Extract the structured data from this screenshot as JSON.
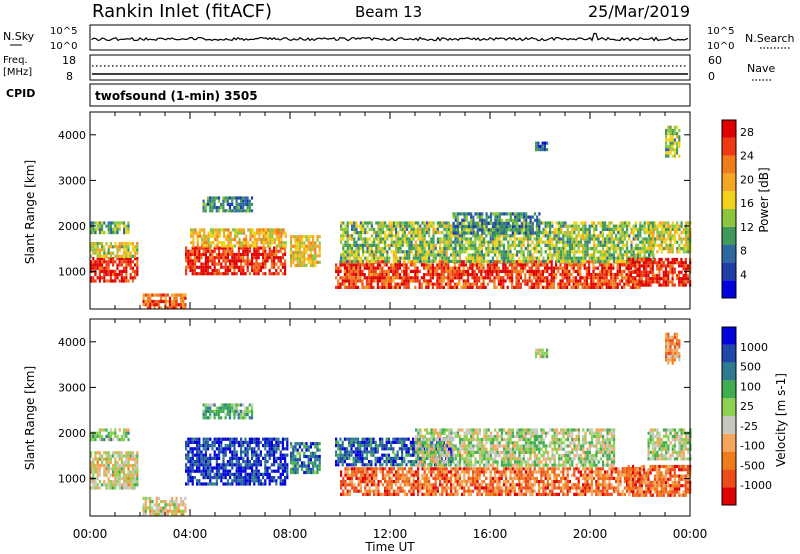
{
  "header": {
    "station": "Rankin Inlet (fitACF)",
    "beam": "Beam 13",
    "date": "25/Mar/2019"
  },
  "noise_panel": {
    "left_label": "N.Sky",
    "right_label": "N.Search",
    "top_tick": "10^5",
    "bottom_tick": "10^0",
    "right_top_tick": "10^5",
    "right_bottom_tick": "10^0"
  },
  "freq_panel": {
    "left_label_1": "Freq.",
    "left_label_2": "[MHz]",
    "left_top_tick": "18",
    "left_bottom_tick": "8",
    "right_label": "Nave",
    "right_top_tick": "60",
    "right_bottom_tick": "0"
  },
  "cpid": {
    "label": "CPID",
    "value": "twofsound (1-min) 3505"
  },
  "axes": {
    "xlabel": "Time UT",
    "xticks": [
      "00:00",
      "04:00",
      "08:00",
      "12:00",
      "16:00",
      "20:00",
      "00:00"
    ],
    "ylabel": "Slant Range [km]",
    "yticks": [
      "1000",
      "2000",
      "3000",
      "4000"
    ]
  },
  "colors": {
    "power": [
      "#0000dd",
      "#1f3fa8",
      "#2e6a9f",
      "#3f9a5a",
      "#8cc63f",
      "#f2d21b",
      "#f5a623",
      "#f07b1b",
      "#ee3a14",
      "#e00000"
    ],
    "velocity": [
      "#e00000",
      "#ee4a1a",
      "#f07b1b",
      "#f5a65a",
      "#c8c8c0",
      "#8ed04f",
      "#3fae4e",
      "#2e7a8f",
      "#1f49a8",
      "#0000dd"
    ]
  },
  "chart_data": [
    {
      "type": "heatmap",
      "name": "power",
      "xlabel": "Time UT",
      "ylabel": "Slant Range [km]",
      "xlim": [
        0,
        24
      ],
      "ylim": [
        180,
        4500
      ],
      "colorbar": {
        "label": "Power [dB]",
        "ticks": [
          "4",
          "8",
          "12",
          "16",
          "20",
          "24",
          "28"
        ],
        "range": [
          0,
          30
        ]
      },
      "regions": [
        {
          "t": [
            0.0,
            1.9
          ],
          "r": [
            780,
            1320
          ],
          "level": 0.92
        },
        {
          "t": [
            0.0,
            1.9
          ],
          "r": [
            1320,
            1650
          ],
          "level": 0.55
        },
        {
          "t": [
            0.0,
            1.5
          ],
          "r": [
            1850,
            2100
          ],
          "level": 0.4
        },
        {
          "t": [
            2.1,
            3.8
          ],
          "r": [
            200,
            520
          ],
          "level": 0.8
        },
        {
          "t": [
            3.8,
            7.8
          ],
          "r": [
            920,
            1550
          ],
          "level": 0.88
        },
        {
          "t": [
            4.0,
            7.8
          ],
          "r": [
            1550,
            1950
          ],
          "level": 0.6
        },
        {
          "t": [
            4.5,
            6.5
          ],
          "r": [
            2350,
            2650
          ],
          "level": 0.3
        },
        {
          "t": [
            8.0,
            9.2
          ],
          "r": [
            1100,
            1800
          ],
          "level": 0.6
        },
        {
          "t": [
            9.8,
            22.0
          ],
          "r": [
            650,
            1250
          ],
          "level": 0.85
        },
        {
          "t": [
            10.0,
            22.5
          ],
          "r": [
            1250,
            2100
          ],
          "level": 0.45
        },
        {
          "t": [
            14.5,
            18.0
          ],
          "r": [
            1850,
            2300
          ],
          "level": 0.3
        },
        {
          "t": [
            17.8,
            18.3
          ],
          "r": [
            3650,
            3850
          ],
          "level": 0.25
        },
        {
          "t": [
            21.5,
            24.0
          ],
          "r": [
            700,
            1300
          ],
          "level": 0.9
        },
        {
          "t": [
            22.3,
            24.0
          ],
          "r": [
            1400,
            2100
          ],
          "level": 0.5
        },
        {
          "t": [
            23.0,
            23.6
          ],
          "r": [
            3500,
            4200
          ],
          "level": 0.45
        }
      ]
    },
    {
      "type": "heatmap",
      "name": "velocity",
      "xlabel": "Time UT",
      "ylabel": "Slant Range [km]",
      "xlim": [
        0,
        24
      ],
      "ylim": [
        180,
        4500
      ],
      "colorbar": {
        "label": "Velocity [m s-1]",
        "ticks": [
          "1000",
          "500",
          "100",
          "25",
          "-25",
          "-100",
          "-500",
          "-1000"
        ],
        "range": [
          -1000,
          1000
        ]
      },
      "regions": [
        {
          "t": [
            0.0,
            1.9
          ],
          "r": [
            800,
            1600
          ],
          "level": 0.45
        },
        {
          "t": [
            0.0,
            1.5
          ],
          "r": [
            1850,
            2100
          ],
          "level": 0.55
        },
        {
          "t": [
            2.1,
            3.8
          ],
          "r": [
            200,
            600
          ],
          "level": 0.45
        },
        {
          "t": [
            3.8,
            7.9
          ],
          "r": [
            900,
            1900
          ],
          "level": 0.88
        },
        {
          "t": [
            4.5,
            6.5
          ],
          "r": [
            2350,
            2650
          ],
          "level": 0.62
        },
        {
          "t": [
            8.0,
            9.2
          ],
          "r": [
            1100,
            1800
          ],
          "level": 0.75
        },
        {
          "t": [
            9.8,
            14.5
          ],
          "r": [
            1300,
            1900
          ],
          "level": 0.82
        },
        {
          "t": [
            10.0,
            22.0
          ],
          "r": [
            650,
            1250
          ],
          "level": 0.22
        },
        {
          "t": [
            13.0,
            21.0
          ],
          "r": [
            1300,
            2100
          ],
          "level": 0.5
        },
        {
          "t": [
            17.8,
            18.3
          ],
          "r": [
            3650,
            3850
          ],
          "level": 0.5
        },
        {
          "t": [
            21.5,
            24.0
          ],
          "r": [
            650,
            1300
          ],
          "level": 0.22
        },
        {
          "t": [
            22.3,
            24.0
          ],
          "r": [
            1400,
            2100
          ],
          "level": 0.5
        },
        {
          "t": [
            23.0,
            23.6
          ],
          "r": [
            3500,
            4200
          ],
          "level": 0.3
        }
      ]
    }
  ]
}
